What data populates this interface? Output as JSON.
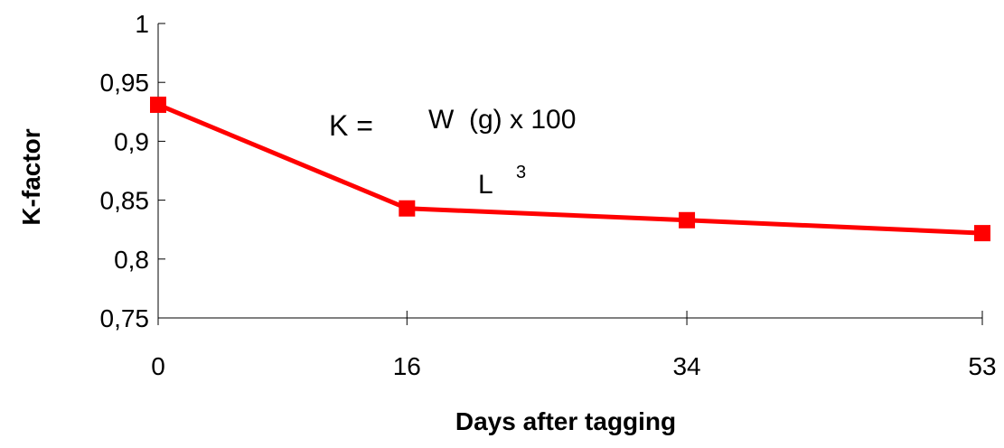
{
  "chart_data": {
    "type": "line",
    "xlabel": "Days after tagging",
    "ylabel": "K-factor",
    "x": [
      0,
      16,
      34,
      53
    ],
    "x_tick_labels": [
      "0",
      "16",
      "34",
      "53"
    ],
    "y_tick_labels": [
      "0,75",
      "0,8",
      "0,85",
      "0,9",
      "0,95",
      "1"
    ],
    "y_ticks": [
      0.75,
      0.8,
      0.85,
      0.9,
      0.95,
      1.0
    ],
    "ylim": [
      0.75,
      1.0
    ],
    "series": [
      {
        "values": [
          0.931,
          0.843,
          0.833,
          0.822
        ],
        "color": "#ff0000",
        "marker": "square"
      }
    ],
    "grid": false,
    "annotation": {
      "lhs": "K =",
      "numerator": "W  (g) x 100",
      "denominator": "L",
      "exponent": "3"
    }
  }
}
